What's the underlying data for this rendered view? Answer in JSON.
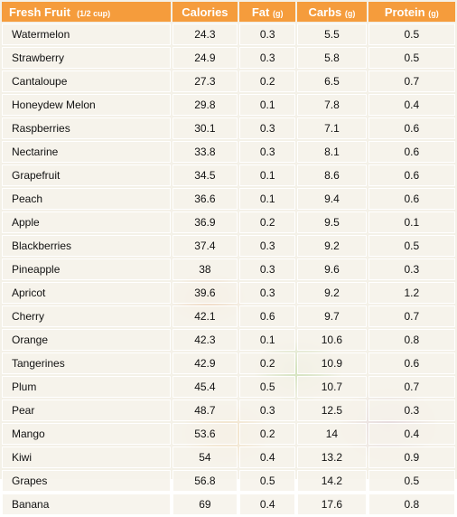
{
  "header": {
    "fruit_label": "Fresh Fruit",
    "fruit_unit": "(1/2 cup)",
    "calories_label": "Calories",
    "fat_label": "Fat",
    "fat_unit": "(g)",
    "carbs_label": "Carbs",
    "carbs_unit": "(g)",
    "protein_label": "Protein",
    "protein_unit": "(g)"
  },
  "colors": {
    "header_bg": "#f59c3c",
    "header_text": "#ffffff"
  },
  "rows": [
    {
      "name": "Watermelon",
      "calories": "24.3",
      "fat": "0.3",
      "carbs": "5.5",
      "protein": "0.5"
    },
    {
      "name": "Strawberry",
      "calories": "24.9",
      "fat": "0.3",
      "carbs": "5.8",
      "protein": "0.5"
    },
    {
      "name": "Cantaloupe",
      "calories": "27.3",
      "fat": "0.2",
      "carbs": "6.5",
      "protein": "0.7"
    },
    {
      "name": "Honeydew Melon",
      "calories": "29.8",
      "fat": "0.1",
      "carbs": "7.8",
      "protein": "0.4"
    },
    {
      "name": "Raspberries",
      "calories": "30.1",
      "fat": "0.3",
      "carbs": "7.1",
      "protein": "0.6"
    },
    {
      "name": "Nectarine",
      "calories": "33.8",
      "fat": "0.3",
      "carbs": "8.1",
      "protein": "0.6"
    },
    {
      "name": "Grapefruit",
      "calories": "34.5",
      "fat": "0.1",
      "carbs": "8.6",
      "protein": "0.6"
    },
    {
      "name": "Peach",
      "calories": "36.6",
      "fat": "0.1",
      "carbs": "9.4",
      "protein": "0.6"
    },
    {
      "name": "Apple",
      "calories": "36.9",
      "fat": "0.2",
      "carbs": "9.5",
      "protein": "0.1"
    },
    {
      "name": "Blackberries",
      "calories": "37.4",
      "fat": "0.3",
      "carbs": "9.2",
      "protein": "0.5"
    },
    {
      "name": "Pineapple",
      "calories": "38",
      "fat": "0.3",
      "carbs": "9.6",
      "protein": "0.3"
    },
    {
      "name": "Apricot",
      "calories": "39.6",
      "fat": "0.3",
      "carbs": "9.2",
      "protein": "1.2"
    },
    {
      "name": "Cherry",
      "calories": "42.1",
      "fat": "0.6",
      "carbs": "9.7",
      "protein": "0.7"
    },
    {
      "name": "Orange",
      "calories": "42.3",
      "fat": "0.1",
      "carbs": "10.6",
      "protein": "0.8"
    },
    {
      "name": "Tangerines",
      "calories": "42.9",
      "fat": "0.2",
      "carbs": "10.9",
      "protein": "0.6"
    },
    {
      "name": "Plum",
      "calories": "45.4",
      "fat": "0.5",
      "carbs": "10.7",
      "protein": "0.7"
    },
    {
      "name": "Pear",
      "calories": "48.7",
      "fat": "0.3",
      "carbs": "12.5",
      "protein": "0.3"
    },
    {
      "name": "Mango",
      "calories": "53.6",
      "fat": "0.2",
      "carbs": "14",
      "protein": "0.4"
    },
    {
      "name": "Kiwi",
      "calories": "54",
      "fat": "0.4",
      "carbs": "13.2",
      "protein": "0.9"
    },
    {
      "name": "Grapes",
      "calories": "56.8",
      "fat": "0.5",
      "carbs": "14.2",
      "protein": "0.5"
    },
    {
      "name": "Banana",
      "calories": "69",
      "fat": "0.4",
      "carbs": "17.6",
      "protein": "0.8"
    }
  ]
}
